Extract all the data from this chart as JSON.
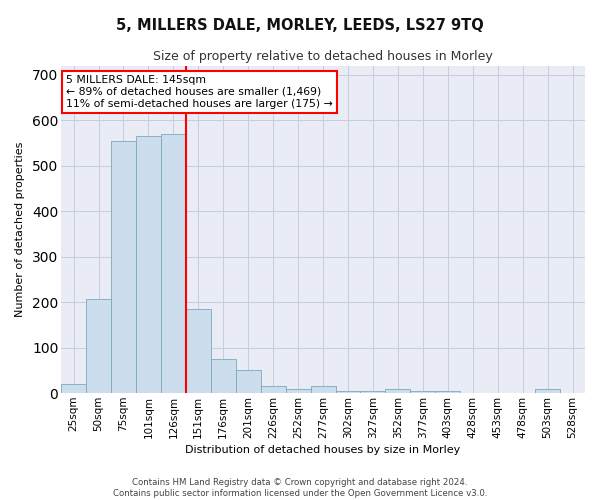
{
  "title": "5, MILLERS DALE, MORLEY, LEEDS, LS27 9TQ",
  "subtitle": "Size of property relative to detached houses in Morley",
  "xlabel": "Distribution of detached houses by size in Morley",
  "ylabel": "Number of detached properties",
  "categories": [
    "25sqm",
    "50sqm",
    "75sqm",
    "101sqm",
    "126sqm",
    "151sqm",
    "176sqm",
    "201sqm",
    "226sqm",
    "252sqm",
    "277sqm",
    "302sqm",
    "327sqm",
    "352sqm",
    "377sqm",
    "403sqm",
    "428sqm",
    "453sqm",
    "478sqm",
    "503sqm",
    "528sqm"
  ],
  "values": [
    20,
    207,
    555,
    565,
    570,
    185,
    75,
    50,
    15,
    10,
    15,
    5,
    5,
    10,
    5,
    5,
    0,
    0,
    0,
    10,
    0
  ],
  "bar_color": "#ccdded",
  "bar_edge_color": "#7aaabb",
  "vline_index": 5,
  "vline_color": "red",
  "annotation_text": "5 MILLERS DALE: 145sqm\n← 89% of detached houses are smaller (1,469)\n11% of semi-detached houses are larger (175) →",
  "annotation_box_color": "white",
  "annotation_box_edge": "red",
  "ylim": [
    0,
    720
  ],
  "yticks": [
    0,
    100,
    200,
    300,
    400,
    500,
    600,
    700
  ],
  "grid_color": "#c8ccdc",
  "background_color": "#eaecf5",
  "footer_line1": "Contains HM Land Registry data © Crown copyright and database right 2024.",
  "footer_line2": "Contains public sector information licensed under the Open Government Licence v3.0.",
  "title_fontsize": 10.5,
  "subtitle_fontsize": 9,
  "axis_label_fontsize": 8,
  "tick_fontsize": 7.5,
  "annotation_fontsize": 7.8,
  "footer_fontsize": 6.2
}
